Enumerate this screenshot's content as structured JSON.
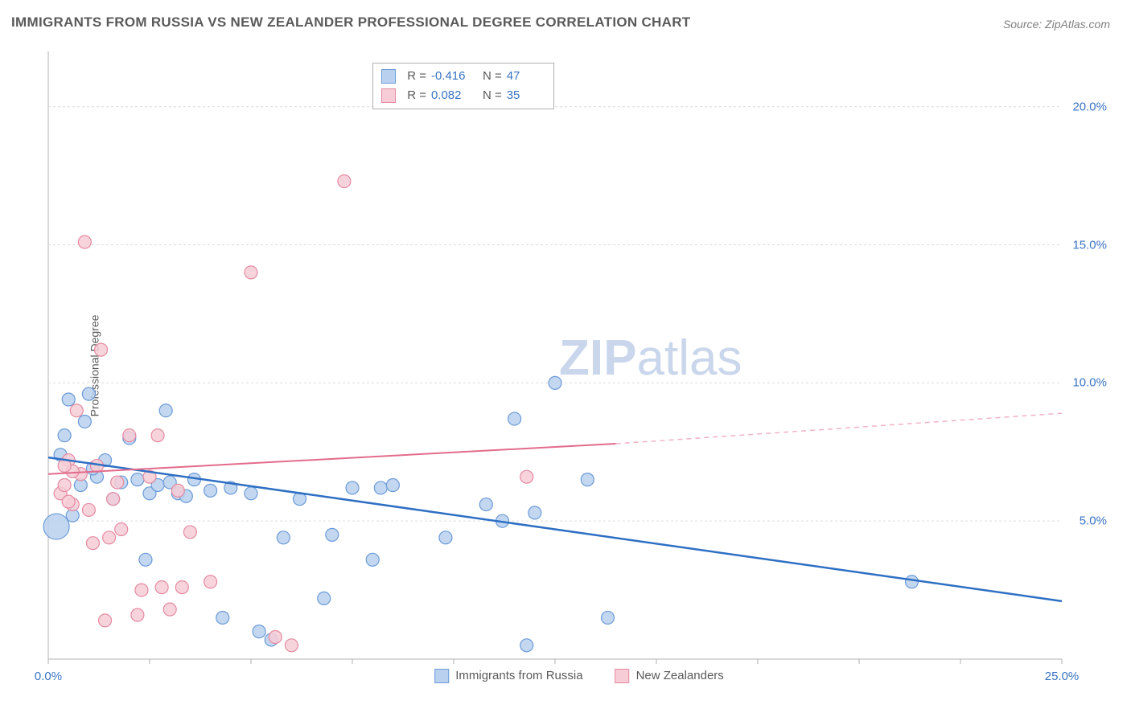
{
  "title": "IMMIGRANTS FROM RUSSIA VS NEW ZEALANDER PROFESSIONAL DEGREE CORRELATION CHART",
  "source": "Source: ZipAtlas.com",
  "ylabel": "Professional Degree",
  "watermark": {
    "zip": "ZIP",
    "rest": "atlas"
  },
  "chart": {
    "type": "scatter",
    "background": "#ffffff",
    "plot_border_color": "#b0b0b0",
    "grid_color": "#dcdcdc",
    "grid_dash": "3,3",
    "xlim": [
      0,
      25
    ],
    "ylim": [
      0,
      22
    ],
    "yticks": [
      {
        "v": 5,
        "label": "5.0%"
      },
      {
        "v": 10,
        "label": "10.0%"
      },
      {
        "v": 15,
        "label": "15.0%"
      },
      {
        "v": 20,
        "label": "20.0%"
      }
    ],
    "xticks_minor": [
      0,
      2.5,
      5,
      7.5,
      10,
      12.5,
      15,
      17.5,
      20,
      22.5,
      25
    ],
    "xticks": [
      {
        "v": 0,
        "label": "0.0%"
      },
      {
        "v": 25,
        "label": "25.0%"
      }
    ],
    "series": [
      {
        "name": "Immigrants from Russia",
        "color_fill": "#b9d0ee",
        "color_stroke": "#6b9bd8",
        "marker_r_default": 8,
        "points": [
          {
            "x": 0.2,
            "y": 4.8,
            "r": 16
          },
          {
            "x": 0.3,
            "y": 7.4
          },
          {
            "x": 0.4,
            "y": 8.1
          },
          {
            "x": 0.5,
            "y": 9.4
          },
          {
            "x": 0.6,
            "y": 5.2
          },
          {
            "x": 0.8,
            "y": 6.3
          },
          {
            "x": 0.9,
            "y": 8.6
          },
          {
            "x": 1.0,
            "y": 9.6
          },
          {
            "x": 1.2,
            "y": 6.6
          },
          {
            "x": 1.4,
            "y": 7.2
          },
          {
            "x": 1.6,
            "y": 5.8
          },
          {
            "x": 1.8,
            "y": 6.4
          },
          {
            "x": 2.0,
            "y": 8.0
          },
          {
            "x": 2.2,
            "y": 6.5
          },
          {
            "x": 2.4,
            "y": 3.6
          },
          {
            "x": 2.5,
            "y": 6.0
          },
          {
            "x": 2.7,
            "y": 6.3
          },
          {
            "x": 2.9,
            "y": 9.0
          },
          {
            "x": 3.0,
            "y": 6.4
          },
          {
            "x": 3.2,
            "y": 6.0
          },
          {
            "x": 3.4,
            "y": 5.9
          },
          {
            "x": 3.6,
            "y": 6.5
          },
          {
            "x": 4.0,
            "y": 6.1
          },
          {
            "x": 4.3,
            "y": 1.5
          },
          {
            "x": 4.5,
            "y": 6.2
          },
          {
            "x": 5.2,
            "y": 1.0
          },
          {
            "x": 5.5,
            "y": 0.7
          },
          {
            "x": 5.8,
            "y": 4.4
          },
          {
            "x": 6.2,
            "y": 5.8
          },
          {
            "x": 6.8,
            "y": 2.2
          },
          {
            "x": 7.0,
            "y": 4.5
          },
          {
            "x": 7.5,
            "y": 6.2
          },
          {
            "x": 8.0,
            "y": 3.6
          },
          {
            "x": 8.2,
            "y": 6.2
          },
          {
            "x": 8.5,
            "y": 6.3
          },
          {
            "x": 9.8,
            "y": 4.4
          },
          {
            "x": 10.8,
            "y": 5.6
          },
          {
            "x": 11.2,
            "y": 5.0
          },
          {
            "x": 11.5,
            "y": 8.7
          },
          {
            "x": 11.8,
            "y": 0.5
          },
          {
            "x": 12.5,
            "y": 10.0
          },
          {
            "x": 12.0,
            "y": 5.3
          },
          {
            "x": 13.3,
            "y": 6.5
          },
          {
            "x": 13.8,
            "y": 1.5
          },
          {
            "x": 21.3,
            "y": 2.8
          },
          {
            "x": 5.0,
            "y": 6.0
          },
          {
            "x": 1.1,
            "y": 6.9
          }
        ],
        "trend": {
          "x1": 0,
          "y1": 7.3,
          "x2": 25,
          "y2": 2.1,
          "width": 2.5,
          "color": "#2e6fc4",
          "dash": null
        }
      },
      {
        "name": "New Zealanders",
        "color_fill": "#f6cdd6",
        "color_stroke": "#e58aa0",
        "marker_r_default": 8,
        "points": [
          {
            "x": 0.3,
            "y": 6.0
          },
          {
            "x": 0.4,
            "y": 6.3
          },
          {
            "x": 0.5,
            "y": 7.2
          },
          {
            "x": 0.6,
            "y": 5.6
          },
          {
            "x": 0.7,
            "y": 9.0
          },
          {
            "x": 0.8,
            "y": 6.7
          },
          {
            "x": 0.9,
            "y": 15.1
          },
          {
            "x": 1.0,
            "y": 5.4
          },
          {
            "x": 1.1,
            "y": 4.2
          },
          {
            "x": 1.2,
            "y": 7.0
          },
          {
            "x": 1.3,
            "y": 11.2
          },
          {
            "x": 1.5,
            "y": 4.4
          },
          {
            "x": 1.6,
            "y": 5.8
          },
          {
            "x": 1.7,
            "y": 6.4
          },
          {
            "x": 1.8,
            "y": 4.7
          },
          {
            "x": 2.0,
            "y": 8.1
          },
          {
            "x": 2.2,
            "y": 1.6
          },
          {
            "x": 2.3,
            "y": 2.5
          },
          {
            "x": 2.5,
            "y": 6.6
          },
          {
            "x": 2.7,
            "y": 8.1
          },
          {
            "x": 2.8,
            "y": 2.6
          },
          {
            "x": 3.0,
            "y": 1.8
          },
          {
            "x": 3.2,
            "y": 6.1
          },
          {
            "x": 3.3,
            "y": 2.6
          },
          {
            "x": 3.5,
            "y": 4.6
          },
          {
            "x": 4.0,
            "y": 2.8
          },
          {
            "x": 5.0,
            "y": 14.0
          },
          {
            "x": 5.6,
            "y": 0.8
          },
          {
            "x": 6.0,
            "y": 0.5
          },
          {
            "x": 7.3,
            "y": 17.3
          },
          {
            "x": 11.8,
            "y": 6.6
          },
          {
            "x": 1.4,
            "y": 1.4
          },
          {
            "x": 0.6,
            "y": 6.8
          },
          {
            "x": 0.5,
            "y": 5.7
          },
          {
            "x": 0.4,
            "y": 7.0
          }
        ],
        "trend_solid": {
          "x1": 0,
          "y1": 6.7,
          "x2": 14,
          "y2": 7.8,
          "width": 2,
          "color": "#e36b8b"
        },
        "trend_dashed": {
          "x1": 14,
          "y1": 7.8,
          "x2": 25,
          "y2": 8.9,
          "width": 1.5,
          "color": "#f0b3c2",
          "dash": "6,5"
        }
      }
    ],
    "stats_legend": {
      "rows": [
        {
          "swatch_fill": "#b9d0ee",
          "swatch_stroke": "#6b9bd8",
          "R": "-0.416",
          "N": "47"
        },
        {
          "swatch_fill": "#f6cdd6",
          "swatch_stroke": "#e58aa0",
          "R": "0.082",
          "N": "35"
        }
      ],
      "label_R": "R =",
      "label_N": "N ="
    }
  },
  "bottom_legend": {
    "items": [
      {
        "swatch_fill": "#b9d0ee",
        "swatch_stroke": "#6b9bd8",
        "label": "Immigrants from Russia"
      },
      {
        "swatch_fill": "#f6cdd6",
        "swatch_stroke": "#e58aa0",
        "label": "New Zealanders"
      }
    ]
  }
}
